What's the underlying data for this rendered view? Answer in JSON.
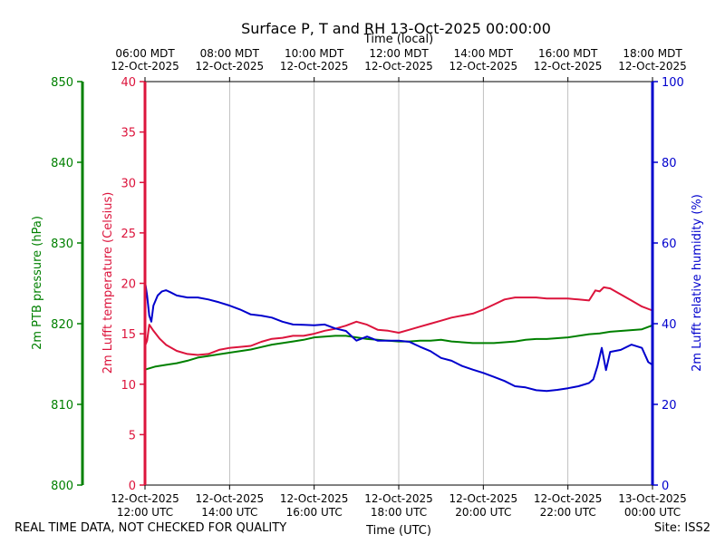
{
  "chart_data": {
    "type": "line",
    "title": "Surface P, T and RH 13-Oct-2025 00:00:00",
    "top_axis_label": "Time (local)",
    "xlabel": "Time (UTC)",
    "xlim": [
      12.0,
      24.0
    ],
    "x_ticks_bottom": [
      {
        "x": 12,
        "line1": "12-Oct-2025",
        "line2": "12:00 UTC"
      },
      {
        "x": 14,
        "line1": "12-Oct-2025",
        "line2": "14:00 UTC"
      },
      {
        "x": 16,
        "line1": "12-Oct-2025",
        "line2": "16:00 UTC"
      },
      {
        "x": 18,
        "line1": "12-Oct-2025",
        "line2": "18:00 UTC"
      },
      {
        "x": 20,
        "line1": "12-Oct-2025",
        "line2": "20:00 UTC"
      },
      {
        "x": 22,
        "line1": "12-Oct-2025",
        "line2": "22:00 UTC"
      },
      {
        "x": 24,
        "line1": "13-Oct-2025",
        "line2": "00:00 UTC"
      }
    ],
    "x_ticks_top": [
      {
        "x": 12,
        "line1": "06:00 MDT",
        "line2": "12-Oct-2025"
      },
      {
        "x": 14,
        "line1": "08:00 MDT",
        "line2": "12-Oct-2025"
      },
      {
        "x": 16,
        "line1": "10:00 MDT",
        "line2": "12-Oct-2025"
      },
      {
        "x": 18,
        "line1": "12:00 MDT",
        "line2": "12-Oct-2025"
      },
      {
        "x": 20,
        "line1": "14:00 MDT",
        "line2": "12-Oct-2025"
      },
      {
        "x": 22,
        "line1": "16:00 MDT",
        "line2": "12-Oct-2025"
      },
      {
        "x": 24,
        "line1": "18:00 MDT",
        "line2": "12-Oct-2025"
      }
    ],
    "grid_x": true,
    "axes": {
      "temperature": {
        "label": "2m Lufft temperature (Celsius)",
        "ylim": [
          0,
          40
        ],
        "ticks": [
          0,
          5,
          10,
          15,
          20,
          25,
          30,
          35,
          40
        ],
        "color": "#dc143c"
      },
      "pressure": {
        "label": "2m PTB pressure (hPa)",
        "ylim": [
          800,
          850
        ],
        "ticks": [
          800,
          810,
          820,
          830,
          840,
          850
        ],
        "color": "#008000"
      },
      "humidity": {
        "label": "2m Lufft relative humidity (%)",
        "ylim": [
          0,
          100
        ],
        "ticks": [
          0,
          20,
          40,
          60,
          80,
          100
        ],
        "color": "#0000cd"
      }
    },
    "series": [
      {
        "axis": "temperature",
        "color": "#dc143c",
        "x": [
          12.0,
          12.05,
          12.1,
          12.2,
          12.35,
          12.5,
          12.75,
          13.0,
          13.25,
          13.5,
          13.75,
          14.0,
          14.25,
          14.5,
          14.75,
          15.0,
          15.25,
          15.5,
          15.75,
          16.0,
          16.25,
          16.5,
          16.75,
          17.0,
          17.25,
          17.5,
          17.75,
          18.0,
          18.25,
          18.5,
          18.75,
          19.0,
          19.25,
          19.5,
          19.75,
          20.0,
          20.25,
          20.5,
          20.75,
          21.0,
          21.25,
          21.5,
          21.75,
          22.0,
          22.25,
          22.5,
          22.65,
          22.75,
          22.85,
          23.0,
          23.25,
          23.5,
          23.75,
          24.0
        ],
        "values": [
          13.8,
          14.3,
          15.9,
          15.3,
          14.5,
          13.9,
          13.3,
          13.0,
          12.9,
          13.0,
          13.4,
          13.6,
          13.7,
          13.8,
          14.2,
          14.5,
          14.6,
          14.8,
          14.8,
          15.0,
          15.3,
          15.5,
          15.8,
          16.2,
          15.9,
          15.4,
          15.3,
          15.1,
          15.4,
          15.7,
          16.0,
          16.3,
          16.6,
          16.8,
          17.0,
          17.4,
          17.9,
          18.4,
          18.6,
          18.6,
          18.6,
          18.5,
          18.5,
          18.5,
          18.4,
          18.3,
          19.3,
          19.2,
          19.6,
          19.5,
          18.9,
          18.3,
          17.7,
          17.3
        ]
      },
      {
        "axis": "pressure",
        "color": "#008000",
        "x": [
          12.0,
          12.25,
          12.5,
          12.75,
          13.0,
          13.25,
          13.5,
          13.75,
          14.0,
          14.25,
          14.5,
          14.75,
          15.0,
          15.25,
          15.5,
          15.75,
          16.0,
          16.25,
          16.5,
          16.75,
          17.0,
          17.25,
          17.5,
          17.75,
          18.0,
          18.25,
          18.5,
          18.75,
          19.0,
          19.25,
          19.5,
          19.75,
          20.0,
          20.25,
          20.5,
          20.75,
          21.0,
          21.25,
          21.5,
          21.75,
          22.0,
          22.25,
          22.5,
          22.75,
          23.0,
          23.25,
          23.5,
          23.75,
          24.0
        ],
        "values": [
          814.3,
          814.7,
          814.9,
          815.1,
          815.4,
          815.8,
          816.0,
          816.2,
          816.4,
          816.6,
          816.8,
          817.1,
          817.4,
          817.6,
          817.8,
          818.0,
          818.3,
          818.4,
          818.5,
          818.5,
          818.3,
          818.1,
          818.0,
          817.9,
          817.8,
          817.8,
          817.9,
          817.9,
          818.0,
          817.8,
          817.7,
          817.6,
          817.6,
          817.6,
          817.7,
          817.8,
          818.0,
          818.1,
          818.1,
          818.2,
          818.3,
          818.5,
          818.7,
          818.8,
          819.0,
          819.1,
          819.2,
          819.3,
          819.8
        ]
      },
      {
        "axis": "humidity",
        "color": "#0000cd",
        "x": [
          12.0,
          12.05,
          12.1,
          12.15,
          12.2,
          12.3,
          12.4,
          12.5,
          12.6,
          12.75,
          13.0,
          13.25,
          13.5,
          13.75,
          14.0,
          14.25,
          14.5,
          14.75,
          15.0,
          15.25,
          15.5,
          15.75,
          16.0,
          16.25,
          16.5,
          16.75,
          17.0,
          17.25,
          17.5,
          17.75,
          18.0,
          18.25,
          18.5,
          18.75,
          19.0,
          19.25,
          19.5,
          19.75,
          20.0,
          20.25,
          20.5,
          20.75,
          21.0,
          21.25,
          21.5,
          21.75,
          22.0,
          22.25,
          22.5,
          22.6,
          22.7,
          22.8,
          22.9,
          23.0,
          23.25,
          23.5,
          23.75,
          23.9,
          24.0
        ],
        "values": [
          50.5,
          47.0,
          42.0,
          40.5,
          44.5,
          47.0,
          48.0,
          48.3,
          47.8,
          47.0,
          46.5,
          46.5,
          46.0,
          45.3,
          44.5,
          43.5,
          42.3,
          42.0,
          41.5,
          40.5,
          39.8,
          39.7,
          39.6,
          39.8,
          38.8,
          38.2,
          35.8,
          36.8,
          35.8,
          35.8,
          35.8,
          35.5,
          34.3,
          33.2,
          31.5,
          30.8,
          29.5,
          28.6,
          27.8,
          26.8,
          25.8,
          24.5,
          24.2,
          23.5,
          23.3,
          23.6,
          24.0,
          24.5,
          25.3,
          26.2,
          29.5,
          34.0,
          28.5,
          33.0,
          33.5,
          34.8,
          34.0,
          30.5,
          29.8
        ]
      }
    ]
  },
  "footer": {
    "left_note": "REAL TIME DATA, NOT CHECKED FOR QUALITY",
    "site": "Site: ISS2"
  }
}
